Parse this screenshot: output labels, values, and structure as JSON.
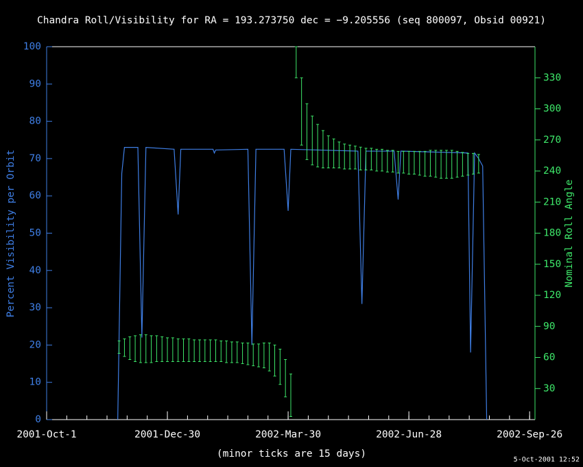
{
  "chart_data": {
    "type": "line",
    "title": "Chandra Roll/Visibility for RA = 193.273750 dec = −9.205556 (seq 800097, Obsid 00921)",
    "xlabel": "(minor ticks are 15 days)",
    "ylabel": "Percent Visibility per Orbit",
    "y2label": "Nominal Roll Angle",
    "timestamp": "5-Oct-2001 12:52",
    "background": "#000000",
    "xlim": [
      "2001-10-01",
      "2002-09-30"
    ],
    "xticks": [
      {
        "value": "2001-10-01",
        "label": "2001-Oct-1"
      },
      {
        "value": "2001-12-30",
        "label": "2001-Dec-30"
      },
      {
        "value": "2002-03-30",
        "label": "2002-Mar-30"
      },
      {
        "value": "2002-06-28",
        "label": "2002-Jun-28"
      },
      {
        "value": "2002-09-26",
        "label": "2002-Sep-26"
      }
    ],
    "minor_tick_days": 15,
    "ylim": [
      0,
      100
    ],
    "yticks": [
      0,
      10,
      20,
      30,
      40,
      50,
      60,
      70,
      80,
      90,
      100
    ],
    "y2lim": [
      0,
      360
    ],
    "y2ticks": [
      30,
      60,
      90,
      120,
      150,
      180,
      210,
      240,
      270,
      300,
      330
    ],
    "y_color": "#3f7fe6",
    "y2_color": "#3ee86a",
    "series": [
      {
        "type": "line",
        "color": "#3f7fe6",
        "x": [
          "2001-11-23",
          "2001-11-26",
          "2001-11-28",
          "2001-12-08",
          "2001-12-11",
          "2001-12-14",
          "2002-01-04",
          "2002-01-07",
          "2002-01-09",
          "2002-02-02",
          "2002-02-03",
          "2002-02-04",
          "2002-02-28",
          "2002-03-03",
          "2002-03-06",
          "2002-03-27",
          "2002-03-30",
          "2002-04-01",
          "2002-05-21",
          "2002-05-24",
          "2002-05-27",
          "2002-06-17",
          "2002-06-20",
          "2002-06-22",
          "2002-08-11",
          "2002-08-13",
          "2002-08-16",
          "2002-08-19",
          "2002-08-22",
          "2002-08-25"
        ],
        "values": [
          0,
          66,
          73,
          73,
          22,
          73,
          72.5,
          55,
          72.5,
          72.5,
          71.5,
          72.3,
          72.5,
          20,
          72.5,
          72.5,
          56,
          72.5,
          72,
          31,
          72,
          72,
          59,
          72,
          71.5,
          18,
          71.5,
          70,
          68,
          0
        ]
      },
      {
        "type": "errorbar",
        "axis": "y2",
        "color": "#3ee86a",
        "x": [
          "2001-11-24",
          "2001-11-28",
          "2001-12-02",
          "2001-12-06",
          "2001-12-10",
          "2001-12-14",
          "2001-12-18",
          "2001-12-22",
          "2001-12-26",
          "2001-12-30",
          "2002-01-03",
          "2002-01-07",
          "2002-01-11",
          "2002-01-15",
          "2002-01-19",
          "2002-01-23",
          "2002-01-27",
          "2002-01-31",
          "2002-02-04",
          "2002-02-08",
          "2002-02-12",
          "2002-02-16",
          "2002-02-20",
          "2002-02-24",
          "2002-02-28",
          "2002-03-04",
          "2002-03-08",
          "2002-03-12",
          "2002-03-16",
          "2002-03-20",
          "2002-03-24",
          "2002-03-28",
          "2002-04-01",
          "2002-04-05",
          "2002-04-09",
          "2002-04-13",
          "2002-04-17",
          "2002-04-21",
          "2002-04-25",
          "2002-04-29",
          "2002-05-03",
          "2002-05-07",
          "2002-05-11",
          "2002-05-15",
          "2002-05-19",
          "2002-05-23",
          "2002-05-27",
          "2002-05-31",
          "2002-06-04",
          "2002-06-08",
          "2002-06-12",
          "2002-06-16",
          "2002-06-20",
          "2002-06-24",
          "2002-06-28",
          "2002-07-02",
          "2002-07-06",
          "2002-07-10",
          "2002-07-14",
          "2002-07-18",
          "2002-07-22",
          "2002-07-26",
          "2002-07-30",
          "2002-08-03",
          "2002-08-07",
          "2002-08-11",
          "2002-08-15",
          "2002-08-19"
        ],
        "low": [
          64,
          61,
          58,
          56,
          55,
          55,
          55,
          56,
          56,
          56,
          56,
          56,
          56,
          56,
          56,
          56,
          56,
          56,
          56,
          56,
          55,
          55,
          55,
          54,
          53,
          52,
          51,
          50,
          47,
          42,
          34,
          22,
          3,
          330,
          265,
          251,
          246,
          244,
          243,
          243,
          243,
          243,
          242,
          242,
          242,
          241,
          241,
          241,
          240,
          240,
          239,
          239,
          238,
          238,
          237,
          237,
          236,
          235,
          235,
          234,
          233,
          233,
          233,
          234,
          235,
          236,
          237,
          238
        ],
        "high": [
          76,
          78,
          80,
          81,
          82,
          82,
          81,
          81,
          80,
          79,
          79,
          78,
          78,
          78,
          77,
          77,
          77,
          77,
          77,
          76,
          76,
          75,
          75,
          74,
          74,
          73,
          73,
          74,
          74,
          72,
          68,
          58,
          44,
          360,
          330,
          305,
          293,
          285,
          279,
          274,
          271,
          268,
          266,
          265,
          264,
          263,
          262,
          262,
          261,
          261,
          260,
          260,
          259,
          259,
          259,
          259,
          259,
          259,
          260,
          260,
          260,
          260,
          260,
          259,
          258,
          257,
          257,
          256
        ]
      }
    ]
  }
}
